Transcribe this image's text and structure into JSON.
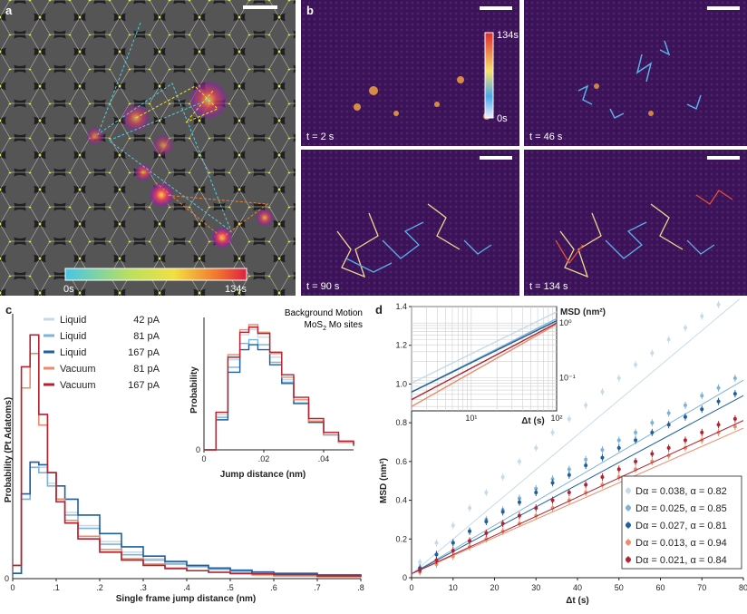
{
  "panel_a": {
    "label": "a",
    "colorbar_min": "0s",
    "colorbar_max": "134s"
  },
  "panel_b": {
    "label": "b",
    "colorbar_max": "134s",
    "colorbar_min": "0s",
    "frames": [
      {
        "time": "t = 2 s"
      },
      {
        "time": "t = 46 s"
      },
      {
        "time": "t = 90 s"
      },
      {
        "time": "t = 134 s"
      }
    ]
  },
  "panel_c": {
    "label": "c",
    "inset_title_line1": "Background Motion",
    "inset_title_line2": "MoS",
    "inset_title_sub": "2",
    "inset_title_line2_rest": " Mo sites",
    "inset_ylabel": "Probability",
    "inset_xlabel": "Jump distance (nm)"
  },
  "panel_d": {
    "label": "d",
    "inset_ylabel": "MSD (nm²)",
    "inset_xlabel": "Δt (s)"
  },
  "colors": {
    "liquid42": "#c6dbea",
    "liquid81": "#7eb3d6",
    "liquid167": "#1f5f9e",
    "vacuum81": "#ea8d6c",
    "vacuum167": "#b22230"
  },
  "chart_data": [
    {
      "type": "line",
      "panel": "c",
      "xlabel": "Single frame jump distance (nm)",
      "ylabel": "Probability (Pt Adatoms)",
      "xlim": [
        0,
        0.8
      ],
      "xticks": [
        "0",
        ".1",
        ".2",
        ".3",
        ".4",
        ".5",
        ".6",
        ".7",
        ".8"
      ],
      "yticks": [
        "0"
      ],
      "legend_position": "top-center",
      "x": [
        0.0,
        0.02,
        0.04,
        0.06,
        0.08,
        0.1,
        0.12,
        0.15,
        0.2,
        0.25,
        0.3,
        0.35,
        0.4,
        0.45,
        0.5,
        0.55,
        0.6,
        0.7,
        0.8
      ],
      "series": [
        {
          "name": "Liquid",
          "label": "42 pA",
          "values": [
            0.02,
            0.3,
            0.44,
            0.42,
            0.36,
            0.3,
            0.25,
            0.2,
            0.14,
            0.1,
            0.075,
            0.06,
            0.05,
            0.04,
            0.03,
            0.025,
            0.02,
            0.015,
            0.01
          ]
        },
        {
          "name": "Liquid",
          "label": "81 pA",
          "values": [
            0.02,
            0.3,
            0.42,
            0.4,
            0.35,
            0.3,
            0.24,
            0.19,
            0.13,
            0.09,
            0.07,
            0.055,
            0.045,
            0.035,
            0.028,
            0.022,
            0.018,
            0.012,
            0.008
          ]
        },
        {
          "name": "Liquid",
          "label": "167 pA",
          "values": [
            0.02,
            0.32,
            0.44,
            0.43,
            0.4,
            0.35,
            0.3,
            0.24,
            0.17,
            0.12,
            0.085,
            0.065,
            0.05,
            0.04,
            0.032,
            0.025,
            0.02,
            0.014,
            0.01
          ]
        },
        {
          "name": "Vacuum",
          "label": "81 pA",
          "values": [
            0.05,
            0.72,
            0.85,
            0.58,
            0.4,
            0.3,
            0.22,
            0.16,
            0.11,
            0.075,
            0.055,
            0.04,
            0.03,
            0.024,
            0.018,
            0.014,
            0.01,
            0.007,
            0.005
          ]
        },
        {
          "name": "Vacuum",
          "label": "167 pA",
          "values": [
            0.05,
            0.8,
            0.92,
            0.62,
            0.4,
            0.29,
            0.21,
            0.15,
            0.1,
            0.07,
            0.05,
            0.038,
            0.03,
            0.024,
            0.02,
            0.018,
            0.015,
            0.01,
            0.006
          ]
        }
      ]
    },
    {
      "type": "line",
      "panel": "c-inset",
      "xlabel": "Jump distance (nm)",
      "ylabel": "Probability",
      "xlim": [
        0,
        0.05
      ],
      "xticks": [
        "0",
        ".02",
        ".04"
      ],
      "yticks": [
        "0"
      ],
      "x": [
        0.0,
        0.004,
        0.008,
        0.012,
        0.015,
        0.018,
        0.022,
        0.026,
        0.03,
        0.035,
        0.04,
        0.045,
        0.05
      ],
      "series": [
        {
          "name": "Liquid",
          "label": "42 pA",
          "values": [
            0.0,
            0.28,
            0.72,
            0.92,
            0.96,
            0.9,
            0.74,
            0.56,
            0.38,
            0.22,
            0.12,
            0.06,
            0.03
          ]
        },
        {
          "name": "Liquid",
          "label": "81 pA",
          "values": [
            0.0,
            0.26,
            0.66,
            0.85,
            0.88,
            0.84,
            0.7,
            0.54,
            0.37,
            0.22,
            0.12,
            0.06,
            0.03
          ]
        },
        {
          "name": "Liquid",
          "label": "167 pA",
          "values": [
            0.0,
            0.24,
            0.62,
            0.8,
            0.84,
            0.8,
            0.68,
            0.53,
            0.37,
            0.22,
            0.12,
            0.06,
            0.03
          ]
        },
        {
          "name": "Vacuum",
          "label": "81 pA",
          "values": [
            0.0,
            0.3,
            0.76,
            0.96,
            1.0,
            0.94,
            0.77,
            0.58,
            0.4,
            0.23,
            0.12,
            0.06,
            0.03
          ]
        },
        {
          "name": "Vacuum",
          "label": "167 pA",
          "values": [
            0.0,
            0.3,
            0.74,
            0.94,
            0.98,
            0.93,
            0.78,
            0.6,
            0.42,
            0.25,
            0.14,
            0.07,
            0.04
          ]
        }
      ]
    },
    {
      "type": "scatter",
      "panel": "d",
      "xlabel": "Δt (s)",
      "ylabel": "MSD (nm²)",
      "xlim": [
        0,
        80
      ],
      "ylim": [
        0,
        1.4
      ],
      "xticks": [
        "0",
        "10",
        "20",
        "30",
        "40",
        "50",
        "60",
        "70",
        "80"
      ],
      "yticks": [
        "0",
        "0.2",
        "0.4",
        "0.6",
        "0.8",
        "1.0",
        "1.2",
        "1.4"
      ],
      "legend_position": "bottom-right",
      "x": [
        2,
        6,
        10,
        14,
        18,
        22,
        26,
        30,
        34,
        38,
        42,
        46,
        50,
        54,
        58,
        62,
        66,
        70,
        74,
        78
      ],
      "series": [
        {
          "name": "Dα = 0.038, α = 0.82",
          "values": [
            0.08,
            0.18,
            0.27,
            0.36,
            0.44,
            0.52,
            0.6,
            0.67,
            0.75,
            0.82,
            0.89,
            0.96,
            1.03,
            1.1,
            1.16,
            1.23,
            1.29,
            1.35,
            1.41,
            1.47
          ]
        },
        {
          "name": "Dα = 0.025, α = 0.85",
          "values": [
            0.05,
            0.12,
            0.18,
            0.24,
            0.3,
            0.35,
            0.41,
            0.46,
            0.51,
            0.56,
            0.61,
            0.66,
            0.71,
            0.75,
            0.8,
            0.85,
            0.89,
            0.94,
            0.98,
            1.03
          ]
        },
        {
          "name": "Dα = 0.027, α = 0.81",
          "values": [
            0.05,
            0.12,
            0.18,
            0.24,
            0.29,
            0.34,
            0.39,
            0.44,
            0.49,
            0.53,
            0.58,
            0.62,
            0.67,
            0.71,
            0.75,
            0.79,
            0.83,
            0.87,
            0.91,
            0.95
          ]
        },
        {
          "name": "Dα = 0.013, α = 0.94",
          "values": [
            0.03,
            0.07,
            0.11,
            0.16,
            0.2,
            0.24,
            0.28,
            0.32,
            0.36,
            0.4,
            0.44,
            0.48,
            0.52,
            0.56,
            0.6,
            0.63,
            0.67,
            0.71,
            0.75,
            0.78
          ]
        },
        {
          "name": "Dα = 0.021, α = 0.84",
          "values": [
            0.04,
            0.09,
            0.14,
            0.19,
            0.23,
            0.28,
            0.32,
            0.36,
            0.4,
            0.44,
            0.48,
            0.52,
            0.56,
            0.6,
            0.64,
            0.67,
            0.71,
            0.75,
            0.79,
            0.82
          ]
        }
      ]
    },
    {
      "type": "line",
      "panel": "d-inset",
      "xlabel": "Δt (s)",
      "ylabel": "MSD (nm²)",
      "xticks": [
        "10¹",
        "10²"
      ],
      "yticks": [
        "10⁰",
        "10⁻¹"
      ],
      "log_scale": true,
      "grid": true,
      "x": [
        2,
        100
      ],
      "series": [
        {
          "name": "Liquid 42 pA",
          "values": [
            0.08,
            1.6
          ]
        },
        {
          "name": "Liquid 81 pA",
          "values": [
            0.055,
            1.2
          ]
        },
        {
          "name": "Liquid 167 pA",
          "values": [
            0.055,
            1.1
          ]
        },
        {
          "name": "Vacuum 81 pA",
          "values": [
            0.03,
            0.95
          ]
        },
        {
          "name": "Vacuum 167 pA",
          "values": [
            0.04,
            1.0
          ]
        }
      ]
    }
  ]
}
